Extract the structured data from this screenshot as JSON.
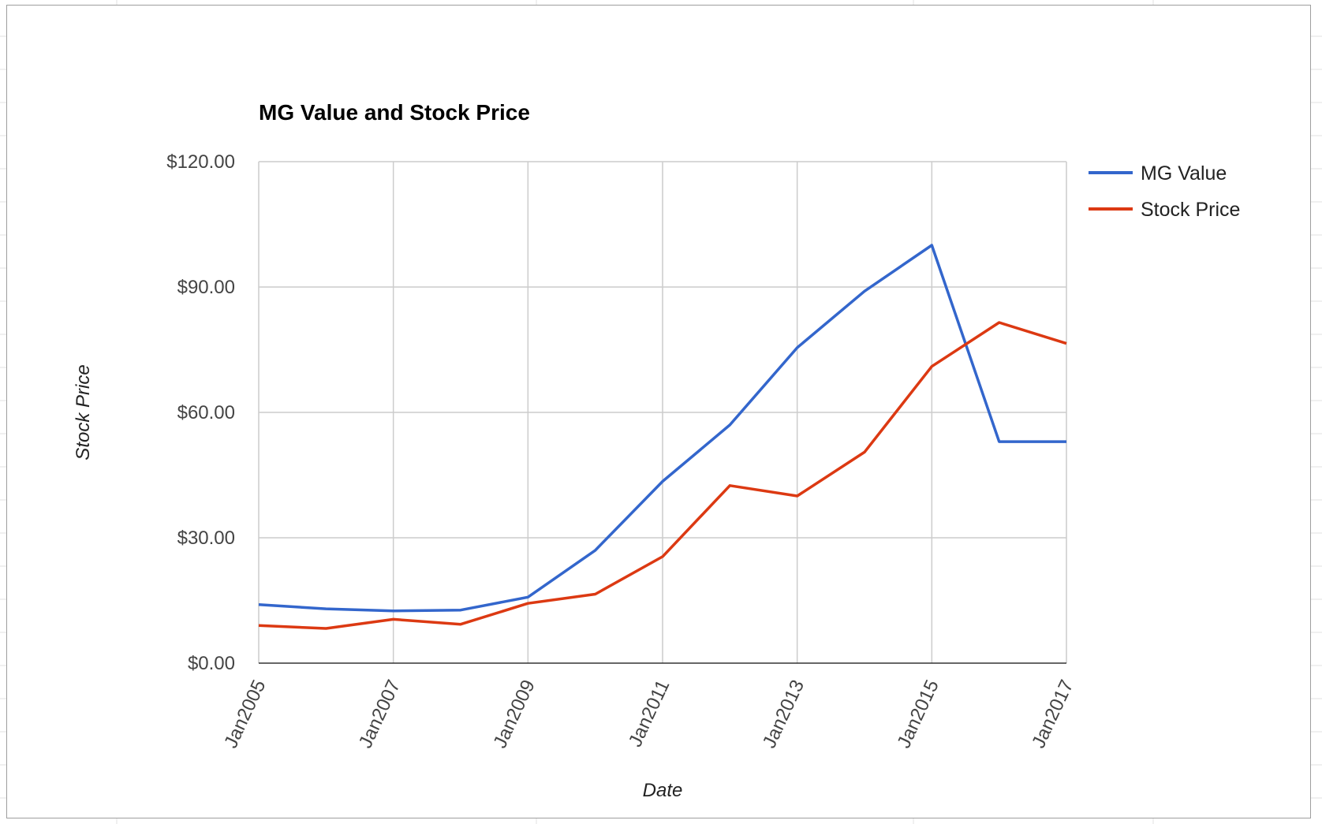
{
  "chart_data": {
    "type": "line",
    "title": "MG Value and Stock Price",
    "xlabel": "Date",
    "ylabel": "Stock Price",
    "x_ticks": [
      "Jan2005",
      "Jan2007",
      "Jan2009",
      "Jan2011",
      "Jan2013",
      "Jan2015",
      "Jan2017"
    ],
    "x_range": [
      "Jan2005",
      "Jan2017"
    ],
    "y_ticks": [
      "$0.00",
      "$30.00",
      "$60.00",
      "$90.00",
      "$120.00"
    ],
    "ylim": [
      0,
      120
    ],
    "grid": true,
    "legend_position": "right",
    "series": [
      {
        "name": "MG Value",
        "color": "#3366cc",
        "x": [
          "Jan2005",
          "Jan2006",
          "Jan2007",
          "Jan2008",
          "Jan2009",
          "Jan2010",
          "Jan2011",
          "Jan2012",
          "Jan2013",
          "Jan2014",
          "Jan2015",
          "Jan2016",
          "Jan2017"
        ],
        "values": [
          14.0,
          13.0,
          12.5,
          12.7,
          15.8,
          27.0,
          43.5,
          57.0,
          75.5,
          89.0,
          100.0,
          53.0,
          53.0
        ]
      },
      {
        "name": "Stock Price",
        "color": "#dc3912",
        "x": [
          "Jan2005",
          "Jan2006",
          "Jan2007",
          "Jan2008",
          "Jan2009",
          "Jan2010",
          "Jan2011",
          "Jan2012",
          "Jan2013",
          "Jan2014",
          "Jan2015",
          "Jan2016",
          "Jan2017"
        ],
        "values": [
          9.0,
          8.3,
          10.5,
          9.3,
          14.3,
          16.5,
          25.5,
          42.5,
          40.0,
          50.5,
          71.0,
          81.5,
          76.5
        ]
      }
    ]
  }
}
